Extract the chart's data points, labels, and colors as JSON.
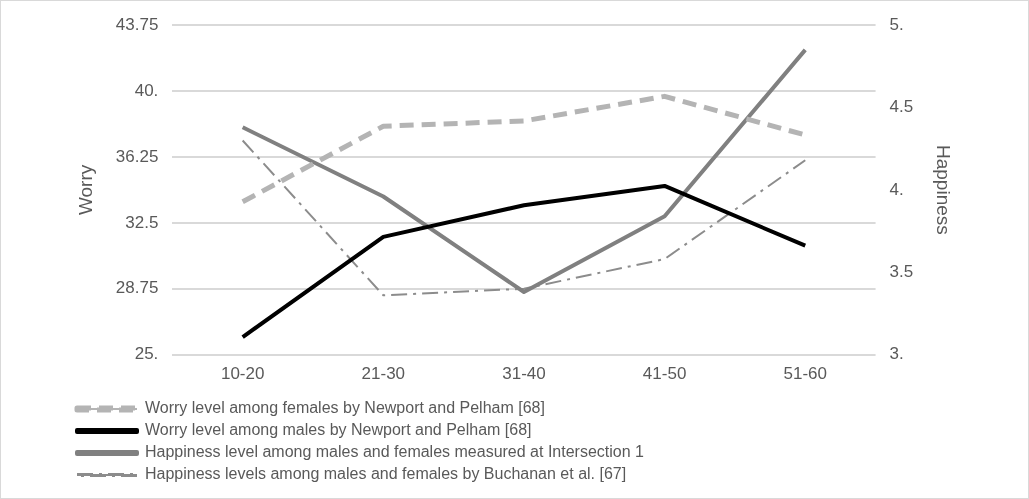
{
  "chart_data": {
    "type": "line",
    "categories": [
      "10-20",
      "21-30",
      "31-40",
      "41-50",
      "51-60"
    ],
    "series": [
      {
        "name": "Worry level among females by Newport and Pelham [68]",
        "color": "#b4b4b4",
        "line_style": "dashed",
        "values": [
          33.7,
          38.0,
          38.3,
          39.7,
          37.5
        ]
      },
      {
        "name": "Worry level among males by Newport and Pelham [68]",
        "color": "#000000",
        "line_style": "solid",
        "values": [
          26.0,
          31.7,
          33.5,
          34.6,
          31.2
        ]
      },
      {
        "name": "Happiness level among males and females measured at Intersection 1",
        "color": "#808080",
        "line_style": "solid",
        "axis": "y2",
        "values": [
          4.38,
          3.96,
          3.38,
          3.84,
          4.85
        ]
      },
      {
        "name": "Happiness levels among males and females by Buchanan et al. [67]",
        "color": "#8c8c8c",
        "line_style": "dashdot",
        "axis": "y2",
        "values": [
          4.3,
          3.36,
          3.4,
          3.58,
          4.18
        ]
      }
    ],
    "ylabel": "Worry",
    "y2label": "Happiness",
    "ylim": [
      25,
      43.75
    ],
    "yticks": [
      {
        "value": 25,
        "label": "25."
      },
      28.75,
      32.5,
      36.25,
      {
        "value": 40,
        "label": "40."
      },
      43.75
    ],
    "y2lim": [
      3,
      5
    ],
    "y2ticks": [
      {
        "value": 3,
        "label": "3."
      },
      3.5,
      {
        "value": 4,
        "label": "4."
      },
      4.5,
      {
        "value": 5,
        "label": "5."
      }
    ],
    "grid": "y",
    "legend": "bottom",
    "marker": "none"
  }
}
